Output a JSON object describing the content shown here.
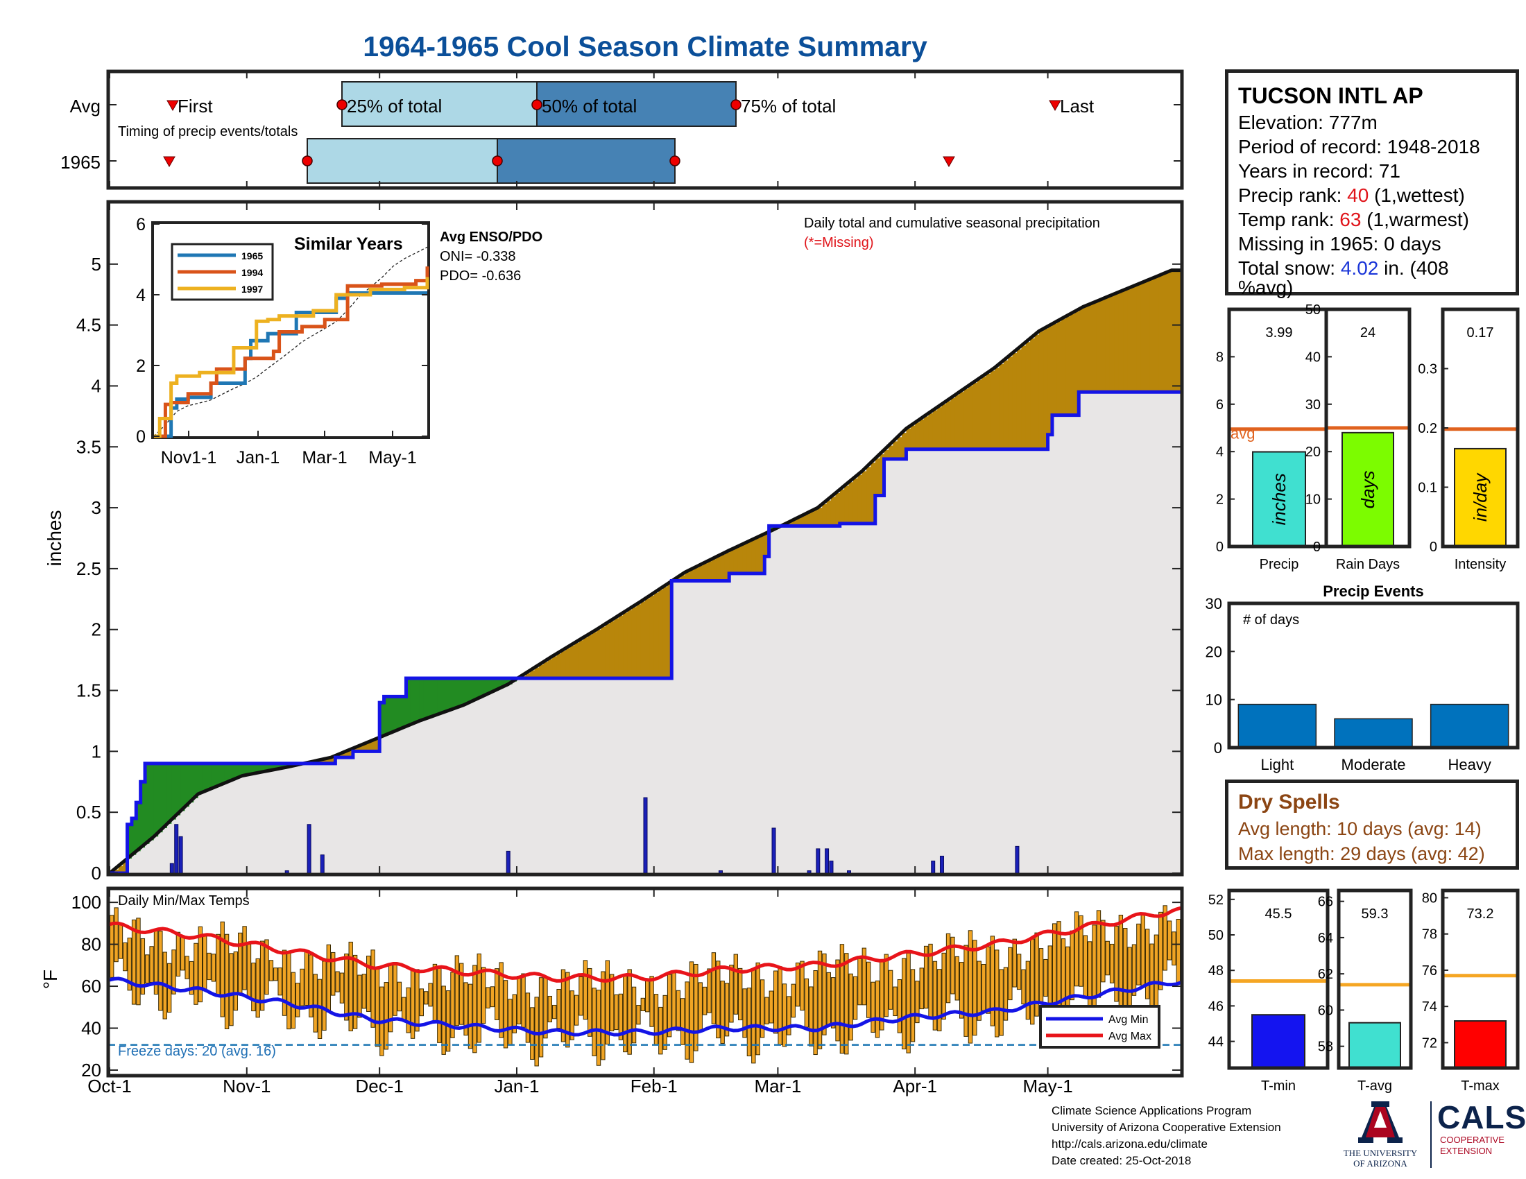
{
  "title": "1964-1965 Cool Season Climate Summary",
  "timing": {
    "row_labels": [
      "Avg",
      "1965"
    ],
    "caption": "Timing of precip events/totals",
    "first_label": "First",
    "last_label": "Last",
    "q25_label": "25% of total",
    "q50_label": "50% of total",
    "q75_label": "75% of total"
  },
  "station": {
    "name": "TUCSON INTL AP",
    "elevation_label": "Elevation: 777m",
    "period_label": "Period of record: 1948-2018",
    "years_label": "Years in record: 71",
    "precip_rank_prefix": "Precip rank: ",
    "precip_rank": "40",
    "precip_rank_suffix": " (1,wettest)",
    "temp_rank_prefix": "Temp rank: ",
    "temp_rank": "63",
    "temp_rank_suffix": " (1,warmest)",
    "missing_label": "Missing in 1965: 0 days",
    "snow_prefix": "Total snow: ",
    "snow_value": "4.02",
    "snow_suffix": " in. (408",
    "snow_suffix2": "%avg)"
  },
  "main_labels": {
    "ylabel": "inches",
    "note": "Daily total and cumulative seasonal precipitation",
    "missing_note": "(*=Missing)"
  },
  "inset": {
    "title": "Similar Years",
    "enso_title": "Avg ENSO/PDO",
    "oni_label": "ONI= -0.338",
    "pdo_label": "PDO= -0.636"
  },
  "temp_labels": {
    "title": "Daily Min/Max Temps",
    "ylabel": "°F",
    "freeze_label": "Freeze days: 20 (avg. 16)",
    "legend_min": "Avg Min",
    "legend_max": "Avg Max"
  },
  "months": [
    "Oct-1",
    "Nov-1",
    "Dec-1",
    "Jan-1",
    "Feb-1",
    "Mar-1",
    "Apr-1",
    "May-1"
  ],
  "dry_spells": {
    "title": "Dry Spells",
    "avg_line": "Avg length: 10 days (avg: 14)",
    "max_line": "Max length: 29 days (avg: 42)"
  },
  "footer": {
    "line1": "Climate Science Applications Program",
    "line2": "University of Arizona Cooperative Extension",
    "line3": "http://cals.arizona.edu/climate",
    "line4": " Date created: 25-Oct-2018",
    "ua_name1": "THE UNIVERSITY",
    "ua_name2": "OF ARIZONA",
    "cals": "CALS",
    "cals_sub1": "COOPERATIVE",
    "cals_sub2": "EXTENSION"
  },
  "colors": {
    "title": "#0b4f99",
    "above_avg_fill": "#b8860b",
    "below_avg_fill": "#228b22",
    "season_line": "#1414e6",
    "cumulative_line": "#111111",
    "bg_fill": "#e8e6e6",
    "temp_bar": "#f0a424",
    "avg_min": "#1414e6",
    "avg_max": "#e8141a",
    "ref_line": "#e0621e",
    "temp_ref": "#f5a623"
  },
  "chart_data": [
    {
      "type": "area",
      "id": "cumulative-precip",
      "ylabel": "inches",
      "ylim": [
        0,
        5.5
      ],
      "x_axis": "day of season (Oct-1 = day 0)",
      "yticks": [
        0,
        0.5,
        1,
        1.5,
        2,
        2.5,
        3,
        3.5,
        4,
        4.5,
        5
      ],
      "series": [
        {
          "name": "1965 cumulative",
          "x": [
            0,
            4,
            5,
            6,
            7,
            8,
            50,
            51,
            52,
            55,
            58,
            61,
            62,
            67,
            80,
            81,
            85,
            86,
            87,
            88,
            91,
            100,
            112,
            113,
            127,
            127,
            128,
            127,
            128,
            140,
            141,
            146,
            148,
            149,
            150,
            152,
            157,
            165,
            172,
            173,
            175,
            180,
            205,
            212,
            213,
            218,
            219,
            240
          ],
          "y": [
            0,
            0.4,
            0.45,
            0.58,
            0.75,
            0.9,
            0.9,
            0.95,
            0.95,
            1.0,
            1.0,
            1.4,
            1.45,
            1.6,
            1.6,
            1.6,
            1.6,
            1.6,
            1.6,
            1.6,
            1.6,
            1.6,
            1.6,
            1.6,
            2.22,
            2.22,
            2.4,
            2.4,
            2.4,
            2.46,
            2.46,
            2.46,
            2.6,
            2.85,
            2.85,
            2.85,
            2.85,
            2.87,
            2.87,
            3.1,
            3.4,
            3.48,
            3.48,
            3.6,
            3.76,
            3.76,
            3.95,
            3.95
          ]
        },
        {
          "name": "Average cumulative",
          "x": [
            0,
            10,
            20,
            30,
            40,
            50,
            60,
            70,
            80,
            90,
            100,
            110,
            120,
            130,
            140,
            150,
            160,
            170,
            180,
            190,
            200,
            210,
            220,
            230,
            240
          ],
          "y": [
            0,
            0.3,
            0.65,
            0.8,
            0.87,
            0.95,
            1.1,
            1.25,
            1.38,
            1.55,
            1.78,
            2.0,
            2.23,
            2.47,
            2.65,
            2.82,
            3.0,
            3.3,
            3.65,
            3.9,
            4.15,
            4.45,
            4.65,
            4.8,
            4.95
          ]
        },
        {
          "name": "Daily precip",
          "x": [
            14,
            15,
            16,
            40,
            45,
            48,
            90,
            121,
            138,
            150,
            158,
            160,
            162,
            163,
            167,
            186,
            188,
            205
          ],
          "y": [
            0.08,
            0.4,
            0.3,
            0.02,
            0.4,
            0.15,
            0.18,
            0.62,
            0.02,
            0.37,
            0.02,
            0.2,
            0.2,
            0.1,
            0.02,
            0.1,
            0.14,
            0.22
          ]
        }
      ]
    },
    {
      "type": "line",
      "id": "similar-years",
      "title": "Similar Years",
      "ylim": [
        0,
        6
      ],
      "yticks": [
        0,
        2,
        4,
        6
      ],
      "xtick_labels": [
        "Nov1-1",
        "Jan-1",
        "Mar-1",
        "May-1"
      ],
      "series": [
        {
          "name": "1965",
          "x": [
            0,
            15,
            20,
            30,
            50,
            80,
            85,
            100,
            125,
            130,
            160,
            170,
            200,
            240
          ],
          "y": [
            0,
            0.8,
            1.05,
            1.1,
            1.5,
            2.2,
            2.7,
            2.9,
            3.5,
            3.5,
            3.9,
            4.05,
            4.05,
            4.05
          ]
        },
        {
          "name": "1994",
          "x": [
            0,
            10,
            15,
            30,
            50,
            55,
            80,
            105,
            110,
            130,
            150,
            170,
            200,
            230,
            240
          ],
          "y": [
            0,
            0.9,
            0.95,
            1.2,
            1.5,
            1.9,
            2.2,
            2.4,
            2.95,
            3.1,
            3.3,
            4.25,
            4.3,
            4.4,
            4.8
          ]
        },
        {
          "name": "1997",
          "x": [
            0,
            5,
            15,
            20,
            40,
            60,
            70,
            90,
            100,
            110,
            140,
            160,
            190,
            220,
            240
          ],
          "y": [
            0,
            0.5,
            1.5,
            1.7,
            1.8,
            1.8,
            2.5,
            3.25,
            3.3,
            3.4,
            3.55,
            4.0,
            4.15,
            4.2,
            4.5
          ]
        }
      ]
    },
    {
      "type": "bar",
      "id": "precip-total",
      "categories": [
        "Precip"
      ],
      "values": [
        3.99
      ],
      "value_label": "3.99",
      "bar_label": "inches",
      "avg": 4.95,
      "avg_label": "avg",
      "ylim": [
        0,
        10
      ],
      "yticks": [
        0,
        2,
        4,
        6,
        8
      ]
    },
    {
      "type": "bar",
      "id": "rain-days",
      "categories": [
        "Rain Days"
      ],
      "values": [
        24
      ],
      "value_label": "24",
      "bar_label": "days",
      "avg": 25,
      "ylim": [
        0,
        50
      ],
      "yticks": [
        0,
        10,
        20,
        30,
        40,
        50
      ]
    },
    {
      "type": "bar",
      "id": "intensity",
      "categories": [
        "Intensity"
      ],
      "values": [
        0.165
      ],
      "value_label": "0.17",
      "bar_label": "in/day",
      "avg": 0.198,
      "ylim": [
        0,
        0.4
      ],
      "yticks": [
        0,
        0.1,
        0.2,
        0.3
      ],
      "ytick_labels": [
        "0",
        "0.1",
        "0.2",
        "0.3"
      ]
    },
    {
      "type": "bar",
      "id": "precip-events",
      "title": "Precip Events",
      "annotation": "# of days",
      "categories": [
        "Light",
        "Moderate",
        "Heavy"
      ],
      "values": [
        9,
        6,
        9
      ],
      "ylim": [
        0,
        30
      ],
      "yticks": [
        0,
        10,
        20,
        30
      ]
    },
    {
      "type": "line",
      "id": "daily-temps",
      "title": "Daily Min/Max Temps",
      "ylabel": "°F",
      "ylim": [
        18,
        106
      ],
      "yticks": [
        20,
        40,
        60,
        80,
        100
      ],
      "freeze_threshold": 32,
      "series": [
        {
          "name": "Avg Min",
          "x": [
            0,
            20,
            40,
            60,
            80,
            100,
            120,
            140,
            160,
            180,
            200,
            220,
            240
          ],
          "y": [
            63,
            58,
            52,
            44,
            41,
            38,
            38,
            40,
            40,
            45,
            48,
            55,
            62
          ]
        },
        {
          "name": "Avg Max",
          "x": [
            0,
            20,
            40,
            60,
            80,
            100,
            120,
            140,
            160,
            180,
            200,
            220,
            240
          ],
          "y": [
            89,
            84,
            77,
            70,
            67,
            64,
            64,
            68,
            70,
            75,
            80,
            88,
            96
          ]
        }
      ]
    },
    {
      "type": "bar",
      "id": "t-min",
      "categories": [
        "T-min"
      ],
      "values": [
        45.5
      ],
      "value_label": "45.5",
      "avg": 47.4,
      "ylim": [
        42.5,
        52.5
      ],
      "yticks": [
        44,
        46,
        48,
        50,
        52
      ]
    },
    {
      "type": "bar",
      "id": "t-avg",
      "categories": [
        "T-avg"
      ],
      "values": [
        59.3
      ],
      "value_label": "59.3",
      "avg": 61.4,
      "ylim": [
        56.8,
        66.6
      ],
      "yticks": [
        58,
        60,
        62,
        64,
        66
      ]
    },
    {
      "type": "bar",
      "id": "t-max",
      "categories": [
        "T-max"
      ],
      "values": [
        73.2
      ],
      "value_label": "73.2",
      "avg": 75.7,
      "ylim": [
        70.6,
        80.4
      ],
      "yticks": [
        72,
        74,
        76,
        78,
        80
      ]
    }
  ]
}
